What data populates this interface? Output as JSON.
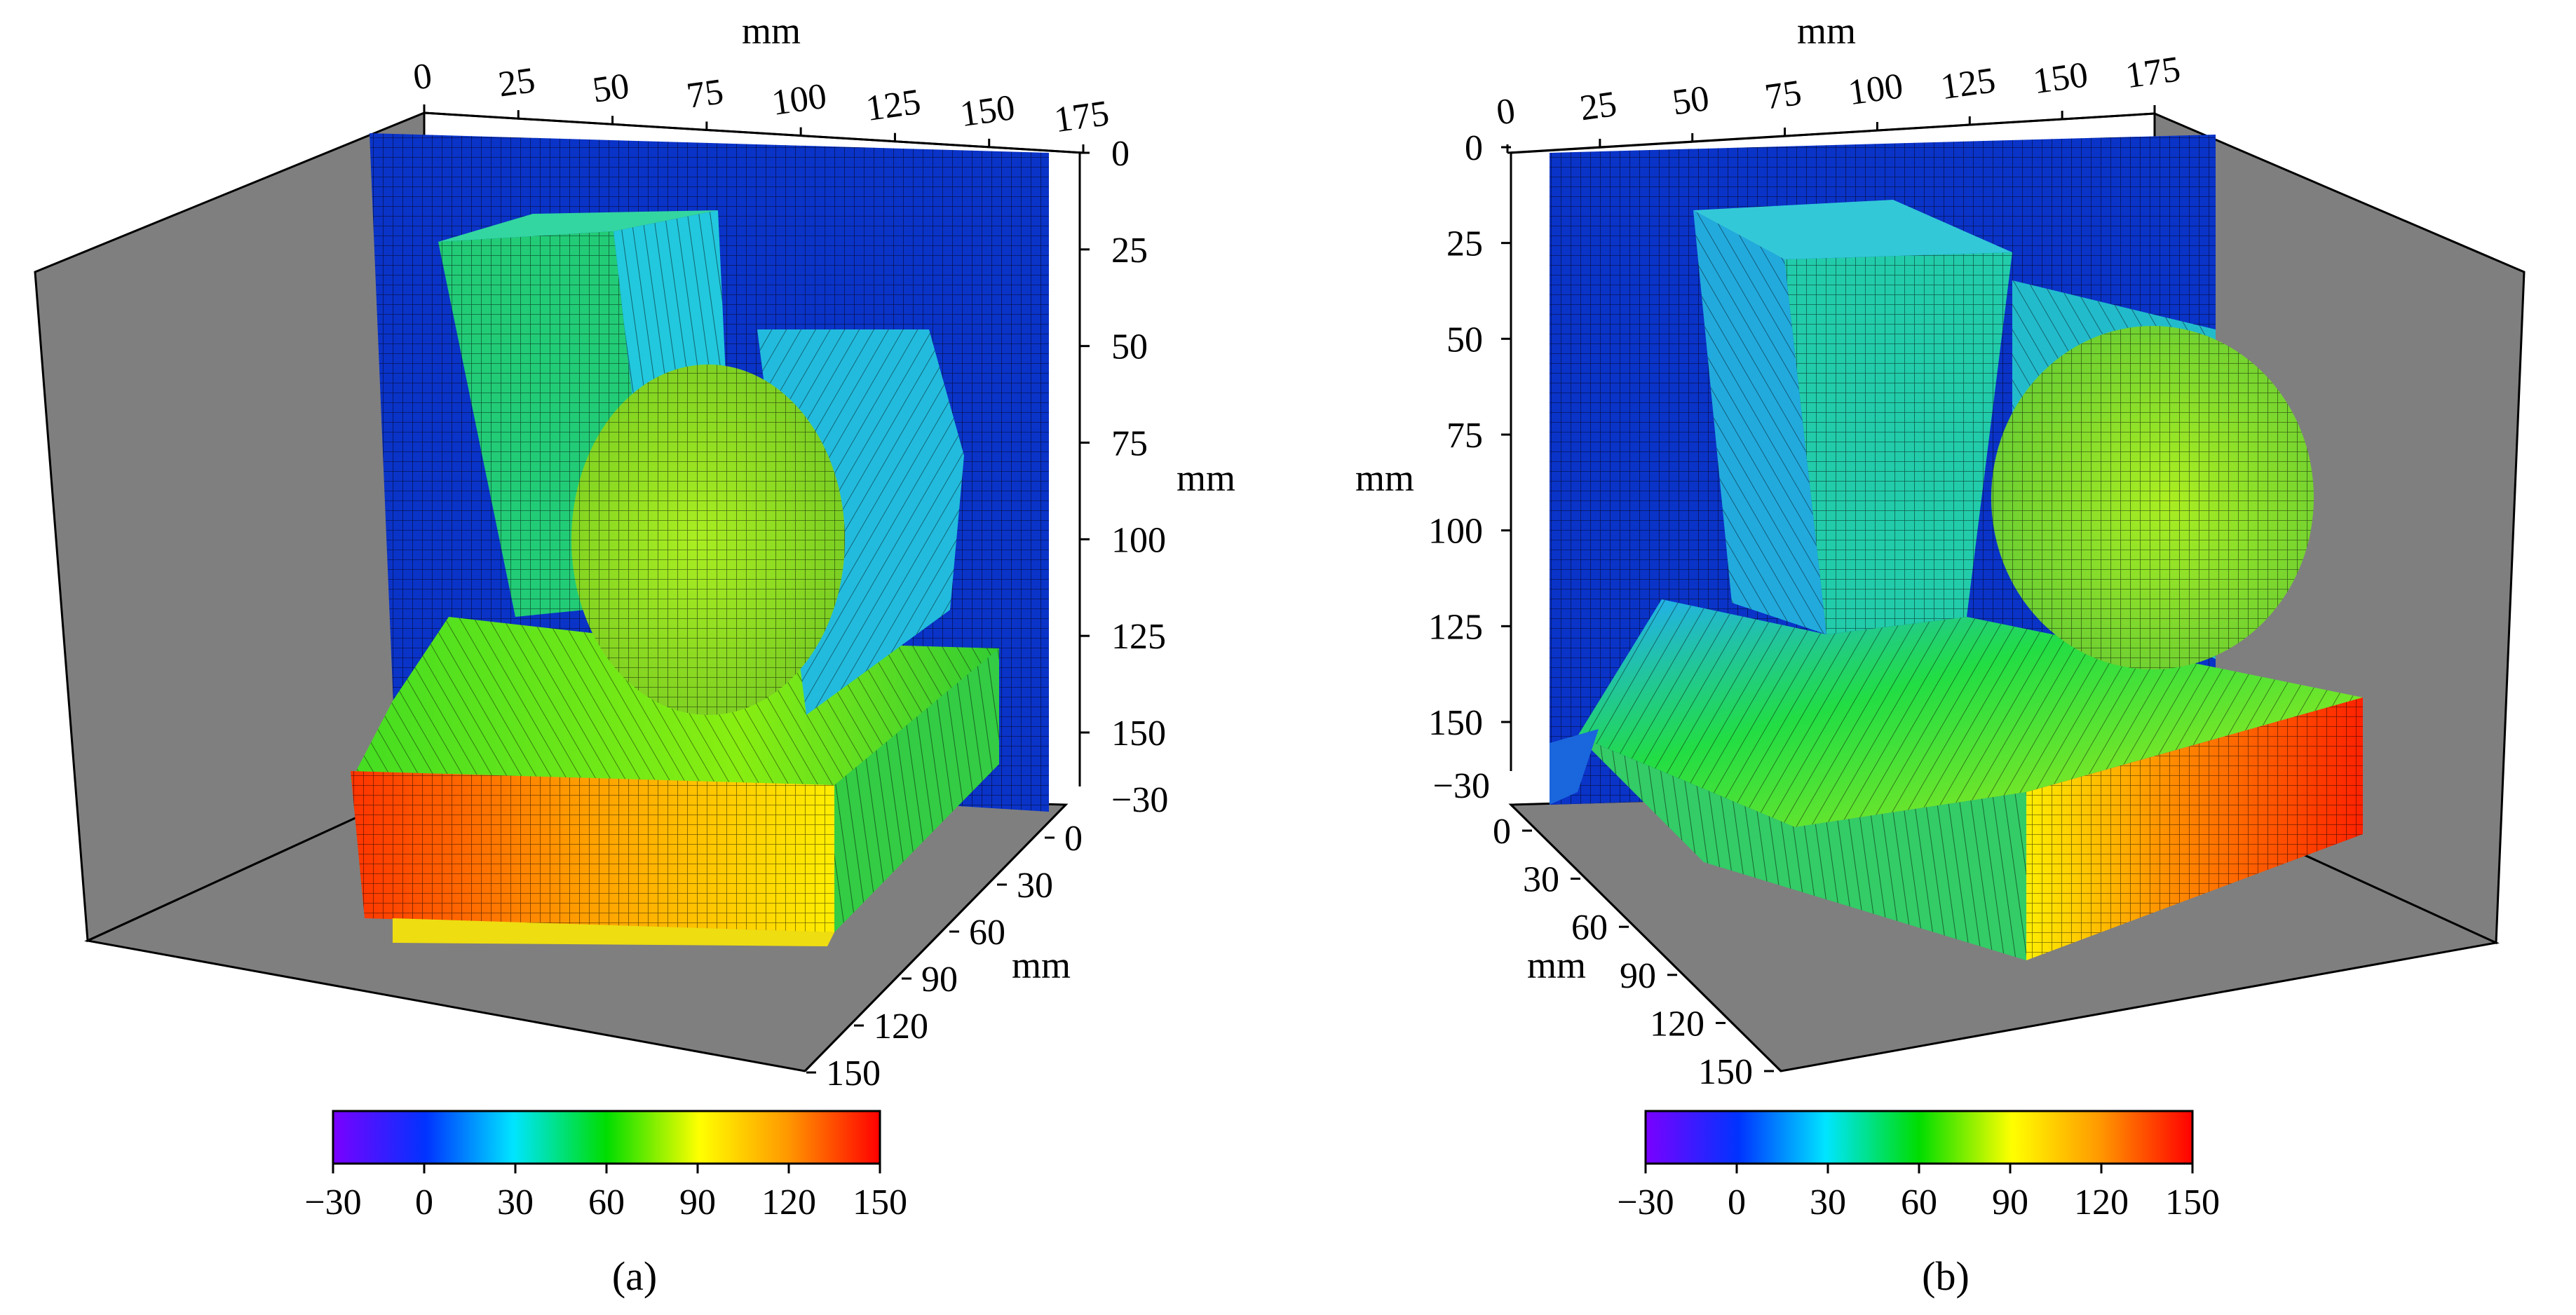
{
  "chart_data": [
    {
      "type": "3d-surface",
      "caption": "(a)",
      "units": {
        "x": "mm",
        "y": "mm",
        "z": "mm"
      },
      "x_axis": {
        "label": "mm",
        "ticks": [
          "0",
          "25",
          "50",
          "75",
          "100",
          "125",
          "150",
          "175"
        ],
        "range": [
          0,
          175
        ]
      },
      "y_axis": {
        "label": "mm",
        "ticks": [
          "0",
          "25",
          "50",
          "75",
          "100",
          "125",
          "150",
          "−30"
        ],
        "range": [
          -30,
          150
        ]
      },
      "z_axis": {
        "label": "mm",
        "ticks": [
          "0",
          "30",
          "60",
          "90",
          "120",
          "150"
        ],
        "range": [
          0,
          150
        ]
      },
      "colorbar": {
        "ticks": [
          "−30",
          "0",
          "30",
          "60",
          "90",
          "120",
          "150"
        ],
        "range": [
          -30,
          150
        ]
      },
      "objects": [
        {
          "name": "back-plane",
          "depth_level": 0
        },
        {
          "name": "tapered-block",
          "depth_level": 45
        },
        {
          "name": "cylinder",
          "depth_level": 60
        },
        {
          "name": "base-block",
          "depth_level": 140
        }
      ]
    },
    {
      "type": "3d-surface",
      "caption": "(b)",
      "units": {
        "x": "mm",
        "y": "mm",
        "z": "mm"
      },
      "x_axis": {
        "label": "mm",
        "ticks": [
          "0",
          "25",
          "50",
          "75",
          "100",
          "125",
          "150",
          "175"
        ],
        "range": [
          0,
          175
        ]
      },
      "y_axis": {
        "label": "mm",
        "ticks": [
          "0",
          "25",
          "50",
          "75",
          "100",
          "125",
          "150",
          "−30"
        ],
        "range": [
          -30,
          150
        ]
      },
      "z_axis": {
        "label": "mm",
        "ticks": [
          "0",
          "30",
          "60",
          "90",
          "120",
          "150"
        ],
        "range": [
          0,
          150
        ]
      },
      "colorbar": {
        "ticks": [
          "−30",
          "0",
          "30",
          "60",
          "90",
          "120",
          "150"
        ],
        "range": [
          -30,
          150
        ]
      },
      "objects": [
        {
          "name": "back-plane",
          "depth_level": 0
        },
        {
          "name": "tapered-block",
          "depth_level": 25
        },
        {
          "name": "cylinder",
          "depth_level": 70
        },
        {
          "name": "base-block",
          "depth_level": 140
        }
      ]
    }
  ],
  "colormap": [
    "#7a00ff",
    "#0033ff",
    "#00e5ff",
    "#00dd00",
    "#ffff00",
    "#ff9900",
    "#ff0000"
  ]
}
